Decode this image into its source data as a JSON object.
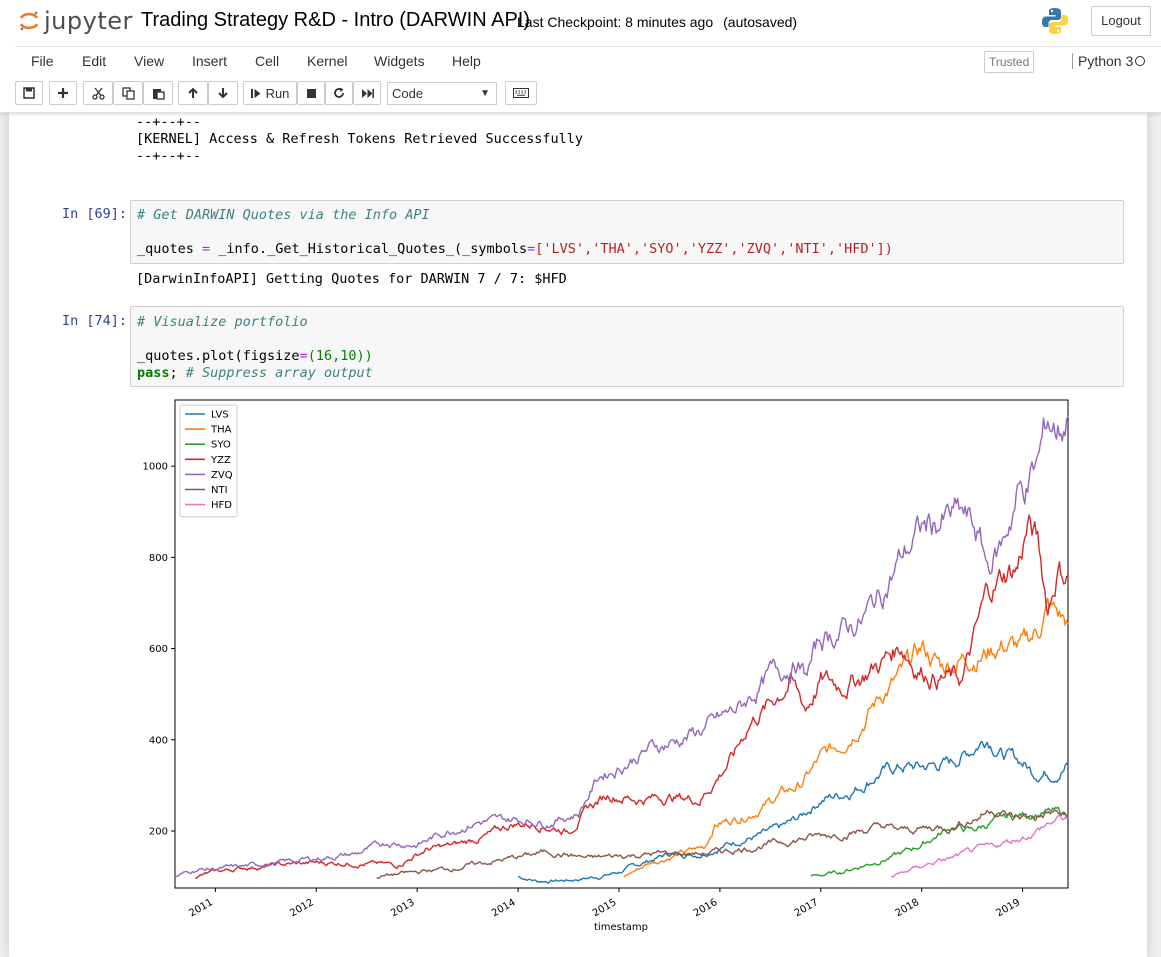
{
  "header": {
    "logo_text": "jupyter",
    "notebook_title": "Trading Strategy R&D - Intro (DARWIN API)",
    "checkpoint": "Last Checkpoint: 8 minutes ago",
    "autosave": "(autosaved)",
    "logout_label": "Logout"
  },
  "menu": {
    "items": [
      "File",
      "Edit",
      "View",
      "Insert",
      "Cell",
      "Kernel",
      "Widgets",
      "Help"
    ],
    "trusted": "Trusted",
    "kernel": "Python 3"
  },
  "toolbar": {
    "run_label": "Run",
    "cell_type": "Code",
    "icons": [
      "save-icon",
      "plus-icon",
      "cut-icon",
      "copy-icon",
      "paste-icon",
      "arrow-up-icon",
      "arrow-down-icon",
      "run-icon",
      "stop-icon",
      "restart-icon",
      "fast-forward-icon",
      "keyboard-icon"
    ]
  },
  "cells": {
    "prev_output": [
      "--+--+--",
      "[KERNEL] Access & Refresh Tokens Retrieved Successfully",
      "--+--+--"
    ],
    "cell69": {
      "prompt": "In [69]:",
      "comment": "# Get DARWIN Quotes via the Info API",
      "code_prefix": "_quotes ",
      "code_op": "=",
      "code_mid": " _info._Get_Historical_Quotes_(_symbols",
      "code_op2": "=",
      "code_list": "['LVS','THA','SYO','YZZ','ZVQ','NTI','HFD'])",
      "output": "[DarwinInfoAPI] Getting Quotes for DARWIN 7 / 7: $HFD"
    },
    "cell74": {
      "prompt": "In [74]:",
      "comment": "# Visualize portfolio",
      "code_prefix": "_quotes.plot(figsize",
      "code_op": "=",
      "code_args": "(16,10))",
      "kw": "pass",
      "code_rest": "; ",
      "comment2": "# Suppress array output"
    }
  },
  "chart_data": {
    "type": "line",
    "xlabel": "timestamp",
    "ylabel": "",
    "title": "",
    "xlim": [
      2010.6,
      2019.45
    ],
    "ylim": [
      75,
      1145
    ],
    "yticks": [
      200,
      400,
      600,
      800,
      1000
    ],
    "xticks": [
      "2011",
      "2012",
      "2013",
      "2014",
      "2015",
      "2016",
      "2017",
      "2018",
      "2019"
    ],
    "legend": "top-left",
    "series": [
      {
        "name": "LVS",
        "color": "#1f77b4",
        "points": [
          [
            2014.0,
            100
          ],
          [
            2014.2,
            90
          ],
          [
            2014.5,
            92
          ],
          [
            2014.8,
            100
          ],
          [
            2015.0,
            110
          ],
          [
            2015.3,
            135
          ],
          [
            2015.5,
            150
          ],
          [
            2015.8,
            150
          ],
          [
            2016.0,
            165
          ],
          [
            2016.2,
            180
          ],
          [
            2016.4,
            190
          ],
          [
            2016.6,
            205
          ],
          [
            2016.8,
            230
          ],
          [
            2017.0,
            270
          ],
          [
            2017.2,
            280
          ],
          [
            2017.4,
            300
          ],
          [
            2017.6,
            330
          ],
          [
            2017.8,
            340
          ],
          [
            2018.0,
            340
          ],
          [
            2018.3,
            350
          ],
          [
            2018.5,
            380
          ],
          [
            2018.65,
            410
          ],
          [
            2018.8,
            370
          ],
          [
            2019.0,
            350
          ],
          [
            2019.1,
            330
          ],
          [
            2019.3,
            330
          ],
          [
            2019.45,
            345
          ]
        ]
      },
      {
        "name": "THA",
        "color": "#ff7f0e",
        "points": [
          [
            2015.05,
            100
          ],
          [
            2015.3,
            130
          ],
          [
            2015.6,
            150
          ],
          [
            2015.85,
            165
          ],
          [
            2015.95,
            215
          ],
          [
            2016.2,
            230
          ],
          [
            2016.4,
            250
          ],
          [
            2016.6,
            280
          ],
          [
            2016.8,
            300
          ],
          [
            2017.0,
            360
          ],
          [
            2017.2,
            390
          ],
          [
            2017.4,
            440
          ],
          [
            2017.6,
            500
          ],
          [
            2017.8,
            540
          ],
          [
            2018.0,
            600
          ],
          [
            2018.2,
            560
          ],
          [
            2018.4,
            580
          ],
          [
            2018.6,
            590
          ],
          [
            2018.8,
            610
          ],
          [
            2019.0,
            600
          ],
          [
            2019.15,
            640
          ],
          [
            2019.25,
            690
          ],
          [
            2019.45,
            655
          ]
        ]
      },
      {
        "name": "SYO",
        "color": "#2ca02c",
        "points": [
          [
            2016.9,
            100
          ],
          [
            2017.2,
            110
          ],
          [
            2017.5,
            130
          ],
          [
            2017.8,
            150
          ],
          [
            2018.0,
            170
          ],
          [
            2018.15,
            190
          ],
          [
            2018.3,
            210
          ],
          [
            2018.5,
            200
          ],
          [
            2018.7,
            220
          ],
          [
            2018.9,
            230
          ],
          [
            2019.1,
            240
          ],
          [
            2019.3,
            240
          ],
          [
            2019.45,
            235
          ]
        ]
      },
      {
        "name": "YZZ",
        "color": "#d62728",
        "points": [
          [
            2010.8,
            100
          ],
          [
            2011.0,
            110
          ],
          [
            2011.3,
            120
          ],
          [
            2011.6,
            125
          ],
          [
            2012.0,
            130
          ],
          [
            2012.4,
            130
          ],
          [
            2012.8,
            125
          ],
          [
            2013.1,
            160
          ],
          [
            2013.4,
            170
          ],
          [
            2013.7,
            190
          ],
          [
            2013.95,
            215
          ],
          [
            2014.2,
            215
          ],
          [
            2014.5,
            200
          ],
          [
            2014.7,
            250
          ],
          [
            2014.9,
            280
          ],
          [
            2015.2,
            270
          ],
          [
            2015.5,
            275
          ],
          [
            2015.8,
            270
          ],
          [
            2015.95,
            310
          ],
          [
            2016.15,
            370
          ],
          [
            2016.3,
            440
          ],
          [
            2016.5,
            480
          ],
          [
            2016.7,
            530
          ],
          [
            2016.85,
            470
          ],
          [
            2017.0,
            530
          ],
          [
            2017.2,
            520
          ],
          [
            2017.4,
            540
          ],
          [
            2017.6,
            570
          ],
          [
            2017.8,
            610
          ],
          [
            2017.95,
            560
          ],
          [
            2018.15,
            540
          ],
          [
            2018.4,
            530
          ],
          [
            2018.55,
            640
          ],
          [
            2018.65,
            720
          ],
          [
            2018.8,
            760
          ],
          [
            2018.95,
            780
          ],
          [
            2019.05,
            870
          ],
          [
            2019.15,
            830
          ],
          [
            2019.25,
            690
          ],
          [
            2019.35,
            780
          ],
          [
            2019.45,
            760
          ]
        ]
      },
      {
        "name": "ZVQ",
        "color": "#9467bd",
        "points": [
          [
            2010.6,
            100
          ],
          [
            2010.8,
            115
          ],
          [
            2011.2,
            120
          ],
          [
            2011.6,
            130
          ],
          [
            2012.0,
            140
          ],
          [
            2012.4,
            150
          ],
          [
            2012.7,
            175
          ],
          [
            2013.0,
            170
          ],
          [
            2013.3,
            200
          ],
          [
            2013.6,
            220
          ],
          [
            2014.0,
            225
          ],
          [
            2014.3,
            220
          ],
          [
            2014.6,
            240
          ],
          [
            2014.8,
            320
          ],
          [
            2015.0,
            340
          ],
          [
            2015.3,
            380
          ],
          [
            2015.6,
            400
          ],
          [
            2015.9,
            430
          ],
          [
            2016.2,
            470
          ],
          [
            2016.5,
            540
          ],
          [
            2016.75,
            570
          ],
          [
            2016.85,
            540
          ],
          [
            2017.0,
            620
          ],
          [
            2017.2,
            640
          ],
          [
            2017.4,
            660
          ],
          [
            2017.6,
            720
          ],
          [
            2017.8,
            800
          ],
          [
            2018.0,
            860
          ],
          [
            2018.2,
            880
          ],
          [
            2018.4,
            890
          ],
          [
            2018.55,
            850
          ],
          [
            2018.65,
            780
          ],
          [
            2018.8,
            830
          ],
          [
            2018.95,
            940
          ],
          [
            2019.05,
            960
          ],
          [
            2019.15,
            1000
          ],
          [
            2019.25,
            1100
          ],
          [
            2019.35,
            1080
          ],
          [
            2019.45,
            1110
          ]
        ]
      },
      {
        "name": "NTI",
        "color": "#8c564b",
        "points": [
          [
            2012.6,
            100
          ],
          [
            2013.0,
            110
          ],
          [
            2013.4,
            120
          ],
          [
            2013.8,
            135
          ],
          [
            2014.3,
            155
          ],
          [
            2014.7,
            140
          ],
          [
            2015.0,
            145
          ],
          [
            2015.4,
            150
          ],
          [
            2015.8,
            150
          ],
          [
            2016.2,
            160
          ],
          [
            2016.6,
            175
          ],
          [
            2017.0,
            190
          ],
          [
            2017.4,
            200
          ],
          [
            2017.6,
            210
          ],
          [
            2017.8,
            200
          ],
          [
            2018.0,
            205
          ],
          [
            2018.3,
            210
          ],
          [
            2018.55,
            230
          ],
          [
            2018.7,
            250
          ],
          [
            2018.9,
            230
          ],
          [
            2019.1,
            230
          ],
          [
            2019.3,
            240
          ],
          [
            2019.45,
            230
          ]
        ]
      },
      {
        "name": "HFD",
        "color": "#e377c2",
        "points": [
          [
            2017.7,
            100
          ],
          [
            2017.9,
            115
          ],
          [
            2018.1,
            130
          ],
          [
            2018.3,
            140
          ],
          [
            2018.5,
            155
          ],
          [
            2018.7,
            165
          ],
          [
            2018.9,
            180
          ],
          [
            2019.1,
            195
          ],
          [
            2019.25,
            215
          ],
          [
            2019.35,
            225
          ],
          [
            2019.45,
            230
          ]
        ]
      }
    ]
  }
}
